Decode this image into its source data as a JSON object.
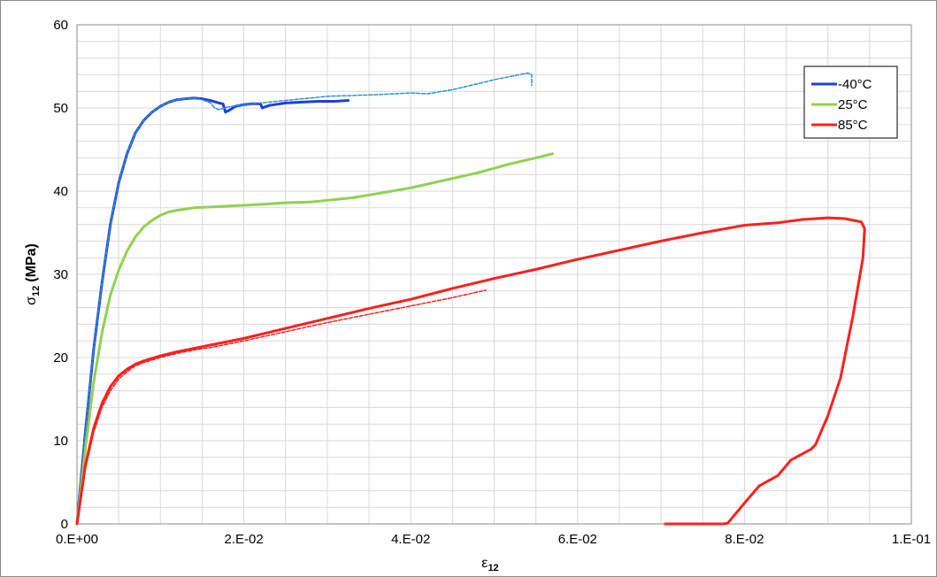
{
  "chart_data": {
    "type": "line",
    "xlabel_symbol": "ε",
    "xlabel_sub": "12",
    "ylabel_symbol": "σ",
    "ylabel_sub": "12",
    "ylabel_unit": "(MPa)",
    "xlim": [
      0,
      0.1
    ],
    "ylim": [
      0,
      60
    ],
    "x_ticks": [
      0,
      0.02,
      0.04,
      0.06,
      0.08,
      0.1
    ],
    "x_tick_labels": [
      "0.E+00",
      "2.E-02",
      "4.E-02",
      "6.E-02",
      "8.E-02",
      "1.E-01"
    ],
    "y_ticks": [
      0,
      10,
      20,
      30,
      40,
      50,
      60
    ],
    "y_tick_labels": [
      "0",
      "10",
      "20",
      "30",
      "40",
      "50",
      "60"
    ],
    "grid": true,
    "legend_position": "top-right",
    "series": [
      {
        "name": "-40°C",
        "color": "#1f3fd6",
        "style": "solid",
        "x": [
          0,
          0.001,
          0.002,
          0.003,
          0.004,
          0.005,
          0.006,
          0.007,
          0.008,
          0.009,
          0.01,
          0.011,
          0.012,
          0.013,
          0.014,
          0.015,
          0.016,
          0.017,
          0.0175,
          0.0178,
          0.0182,
          0.019,
          0.02,
          0.021,
          0.022,
          0.0222,
          0.023,
          0.025,
          0.027,
          0.029,
          0.031,
          0.0325
        ],
        "y": [
          0,
          11,
          21,
          29,
          36,
          41,
          44.5,
          47,
          48.5,
          49.5,
          50.2,
          50.7,
          51.0,
          51.1,
          51.2,
          51.1,
          50.9,
          50.6,
          50.5,
          49.5,
          49.7,
          50.2,
          50.4,
          50.5,
          50.5,
          50.0,
          50.3,
          50.6,
          50.7,
          50.8,
          50.8,
          50.9
        ]
      },
      {
        "name": "",
        "color": "#2e8fd6",
        "style": "dashed",
        "x": [
          0,
          0.001,
          0.002,
          0.003,
          0.004,
          0.005,
          0.006,
          0.007,
          0.008,
          0.009,
          0.01,
          0.011,
          0.012,
          0.013,
          0.014,
          0.015,
          0.016,
          0.0165,
          0.017,
          0.018,
          0.02,
          0.022,
          0.025,
          0.028,
          0.03,
          0.033,
          0.036,
          0.04,
          0.042,
          0.045,
          0.048,
          0.05,
          0.052,
          0.054,
          0.0545,
          0.0545
        ],
        "y": [
          0,
          11,
          21,
          29,
          36,
          41,
          44.5,
          47,
          48.5,
          49.5,
          50.2,
          50.7,
          51.0,
          51.1,
          51.2,
          51.0,
          50.6,
          50.0,
          49.8,
          50.1,
          50.4,
          50.6,
          50.9,
          51.2,
          51.4,
          51.5,
          51.6,
          51.8,
          51.7,
          52.2,
          52.9,
          53.4,
          53.8,
          54.2,
          54.0,
          52.7
        ]
      },
      {
        "name": "25°C",
        "color": "#92d050",
        "style": "solid",
        "x": [
          0,
          0.001,
          0.002,
          0.003,
          0.004,
          0.005,
          0.006,
          0.007,
          0.008,
          0.009,
          0.01,
          0.011,
          0.012,
          0.014,
          0.016,
          0.018,
          0.02,
          0.022,
          0.025,
          0.028,
          0.03,
          0.033,
          0.036,
          0.04,
          0.044,
          0.048,
          0.052,
          0.055,
          0.057
        ],
        "y": [
          0,
          9,
          17,
          23,
          27.5,
          30.5,
          32.8,
          34.5,
          35.7,
          36.5,
          37.1,
          37.5,
          37.7,
          38.0,
          38.1,
          38.2,
          38.3,
          38.4,
          38.6,
          38.7,
          38.9,
          39.2,
          39.7,
          40.4,
          41.3,
          42.2,
          43.3,
          44.0,
          44.5
        ]
      },
      {
        "name": "85°C",
        "color": "#ff1f1f",
        "style": "solid",
        "x": [
          0,
          0.001,
          0.002,
          0.003,
          0.004,
          0.005,
          0.006,
          0.007,
          0.008,
          0.009,
          0.01,
          0.012,
          0.014,
          0.016,
          0.018,
          0.02,
          0.025,
          0.03,
          0.035,
          0.04,
          0.045,
          0.05,
          0.055,
          0.06,
          0.065,
          0.07,
          0.075,
          0.08,
          0.084,
          0.087,
          0.09,
          0.092,
          0.094,
          0.0944,
          0.0942,
          0.093,
          0.0915,
          0.09,
          0.0885,
          0.088,
          0.0858,
          0.0855,
          0.084,
          0.0818,
          0.08,
          0.078,
          0.0775,
          0.075,
          0.0705
        ],
        "y": [
          0,
          7,
          11.5,
          14.5,
          16.5,
          17.8,
          18.6,
          19.2,
          19.6,
          19.9,
          20.2,
          20.7,
          21.1,
          21.5,
          21.9,
          22.3,
          23.5,
          24.7,
          25.9,
          27.0,
          28.3,
          29.5,
          30.6,
          31.8,
          32.9,
          34.0,
          35.0,
          35.9,
          36.2,
          36.6,
          36.8,
          36.7,
          36.3,
          35.5,
          32.0,
          25.0,
          17.5,
          13.0,
          9.5,
          9.0,
          7.8,
          7.6,
          5.8,
          4.6,
          2.5,
          0.1,
          0,
          0,
          0
        ]
      },
      {
        "name": "",
        "color": "#ff1f1f",
        "style": "dashed",
        "x": [
          0,
          0.001,
          0.002,
          0.003,
          0.004,
          0.005,
          0.006,
          0.007,
          0.008,
          0.009,
          0.01,
          0.012,
          0.014,
          0.016,
          0.018,
          0.02,
          0.025,
          0.03,
          0.035,
          0.04,
          0.045,
          0.049
        ],
        "y": [
          0,
          6.5,
          11.0,
          14.0,
          16.0,
          17.4,
          18.3,
          19.0,
          19.4,
          19.7,
          20.0,
          20.5,
          20.9,
          21.2,
          21.6,
          22.0,
          23.1,
          24.2,
          25.2,
          26.2,
          27.2,
          28.1
        ]
      }
    ]
  }
}
